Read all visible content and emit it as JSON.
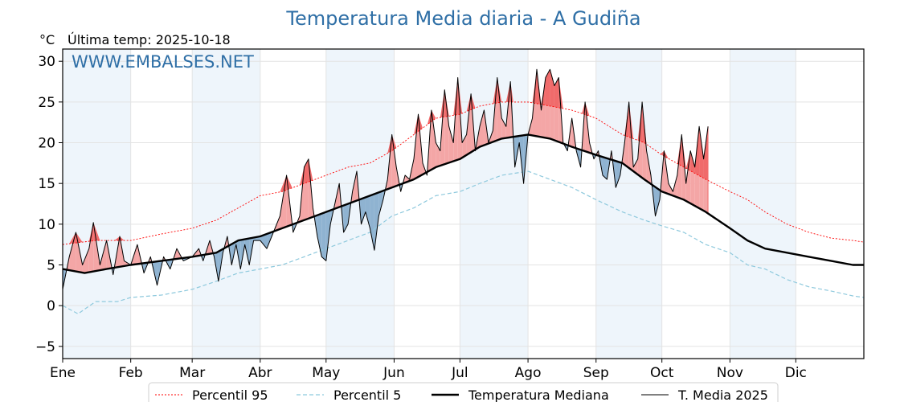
{
  "chart_data": {
    "type": "line",
    "title": "Temperatura Media diaria - A Gudiña",
    "unit_label": "°C",
    "last_temp_label": "Última temp: 2025-10-18",
    "watermark": "WWW.EMBALSES.NET",
    "ylim": [
      -6.5,
      31.5
    ],
    "y_ticks": [
      -5,
      0,
      5,
      10,
      15,
      20,
      25,
      30
    ],
    "x_range_days": [
      0,
      365
    ],
    "months": [
      {
        "label": "Ene",
        "day": 0
      },
      {
        "label": "Feb",
        "day": 31
      },
      {
        "label": "Mar",
        "day": 59
      },
      {
        "label": "Abr",
        "day": 90
      },
      {
        "label": "May",
        "day": 120
      },
      {
        "label": "Jun",
        "day": 151
      },
      {
        "label": "Jul",
        "day": 181
      },
      {
        "label": "Ago",
        "day": 212
      },
      {
        "label": "Sep",
        "day": 243
      },
      {
        "label": "Oct",
        "day": 273
      },
      {
        "label": "Nov",
        "day": 304
      },
      {
        "label": "Dic",
        "day": 334
      }
    ],
    "shaded_bands_days": [
      [
        0,
        31
      ],
      [
        59,
        90
      ],
      [
        120,
        151
      ],
      [
        181,
        212
      ],
      [
        243,
        273
      ],
      [
        304,
        334
      ]
    ],
    "grid": true,
    "legend_position": "bottom",
    "colors": {
      "p95": "#ff0000",
      "p5": "#8ec9dd",
      "median": "#000000",
      "current": "#000000",
      "above": "#f4a6a6",
      "above_extreme": "#f06b6b",
      "below": "#8fb3d1",
      "band": "#eef5fb",
      "title": "#2f6fa6"
    },
    "series": [
      {
        "name": "Percentil 95",
        "style": "dotted-red",
        "points": [
          [
            0,
            7.5
          ],
          [
            15,
            8
          ],
          [
            31,
            8
          ],
          [
            45,
            8.8
          ],
          [
            59,
            9.5
          ],
          [
            70,
            10.5
          ],
          [
            80,
            12
          ],
          [
            90,
            13.5
          ],
          [
            100,
            14
          ],
          [
            110,
            15
          ],
          [
            120,
            16
          ],
          [
            130,
            17
          ],
          [
            140,
            17.5
          ],
          [
            150,
            19
          ],
          [
            160,
            21
          ],
          [
            170,
            23
          ],
          [
            181,
            23.5
          ],
          [
            190,
            24.5
          ],
          [
            200,
            25
          ],
          [
            212,
            25
          ],
          [
            222,
            24.5
          ],
          [
            232,
            24
          ],
          [
            243,
            23
          ],
          [
            255,
            21
          ],
          [
            265,
            20
          ],
          [
            273,
            18.5
          ],
          [
            283,
            17
          ],
          [
            293,
            15.5
          ],
          [
            304,
            14
          ],
          [
            312,
            13
          ],
          [
            320,
            11.5
          ],
          [
            330,
            10
          ],
          [
            340,
            9
          ],
          [
            350,
            8.3
          ],
          [
            360,
            8
          ],
          [
            365,
            7.8
          ]
        ]
      },
      {
        "name": "Percentil 5",
        "style": "dashed-lightblue",
        "points": [
          [
            0,
            0
          ],
          [
            7,
            -1
          ],
          [
            15,
            0.5
          ],
          [
            25,
            0.5
          ],
          [
            31,
            1
          ],
          [
            45,
            1.3
          ],
          [
            59,
            2
          ],
          [
            70,
            3
          ],
          [
            80,
            4
          ],
          [
            90,
            4.5
          ],
          [
            100,
            5
          ],
          [
            110,
            6
          ],
          [
            120,
            7
          ],
          [
            130,
            8
          ],
          [
            140,
            9
          ],
          [
            150,
            11
          ],
          [
            160,
            12
          ],
          [
            170,
            13.5
          ],
          [
            181,
            14
          ],
          [
            190,
            15
          ],
          [
            200,
            16
          ],
          [
            212,
            16.5
          ],
          [
            222,
            15.5
          ],
          [
            232,
            14.5
          ],
          [
            243,
            13
          ],
          [
            255,
            11.5
          ],
          [
            265,
            10.5
          ],
          [
            273,
            9.8
          ],
          [
            283,
            9
          ],
          [
            293,
            7.5
          ],
          [
            304,
            6.5
          ],
          [
            312,
            5
          ],
          [
            320,
            4.5
          ],
          [
            330,
            3.2
          ],
          [
            340,
            2.3
          ],
          [
            350,
            1.8
          ],
          [
            360,
            1.2
          ],
          [
            365,
            1
          ]
        ]
      },
      {
        "name": "Temperatura Mediana",
        "style": "thick-black",
        "points": [
          [
            0,
            4.5
          ],
          [
            10,
            4
          ],
          [
            20,
            4.5
          ],
          [
            31,
            5
          ],
          [
            45,
            5.5
          ],
          [
            59,
            6
          ],
          [
            70,
            6.5
          ],
          [
            80,
            8
          ],
          [
            90,
            8.5
          ],
          [
            100,
            9.5
          ],
          [
            110,
            10.5
          ],
          [
            120,
            11.5
          ],
          [
            130,
            12.5
          ],
          [
            140,
            13.5
          ],
          [
            150,
            14.5
          ],
          [
            160,
            15.5
          ],
          [
            170,
            17
          ],
          [
            181,
            18
          ],
          [
            190,
            19.5
          ],
          [
            200,
            20.5
          ],
          [
            212,
            21
          ],
          [
            222,
            20.5
          ],
          [
            232,
            19.5
          ],
          [
            243,
            18.5
          ],
          [
            255,
            17.5
          ],
          [
            265,
            15.5
          ],
          [
            273,
            14
          ],
          [
            283,
            13
          ],
          [
            293,
            11.5
          ],
          [
            304,
            9.5
          ],
          [
            312,
            8
          ],
          [
            320,
            7
          ],
          [
            330,
            6.5
          ],
          [
            340,
            6
          ],
          [
            350,
            5.5
          ],
          [
            360,
            5
          ],
          [
            365,
            5
          ]
        ]
      },
      {
        "name": "T. Media 2025",
        "style": "thin-black",
        "points": [
          [
            0,
            2
          ],
          [
            3,
            6
          ],
          [
            6,
            9
          ],
          [
            9,
            5
          ],
          [
            12,
            7
          ],
          [
            14,
            10.2
          ],
          [
            17,
            5
          ],
          [
            20,
            8
          ],
          [
            23,
            3.8
          ],
          [
            26,
            8.5
          ],
          [
            28,
            5.5
          ],
          [
            31,
            5
          ],
          [
            34,
            7.5
          ],
          [
            37,
            4
          ],
          [
            40,
            6
          ],
          [
            43,
            2.5
          ],
          [
            46,
            6
          ],
          [
            49,
            4.5
          ],
          [
            52,
            7
          ],
          [
            55,
            5.5
          ],
          [
            59,
            6
          ],
          [
            62,
            7
          ],
          [
            64,
            5.5
          ],
          [
            67,
            8
          ],
          [
            69,
            6
          ],
          [
            71,
            3
          ],
          [
            73,
            6.5
          ],
          [
            75,
            8.5
          ],
          [
            77,
            5
          ],
          [
            79,
            7.5
          ],
          [
            81,
            4.5
          ],
          [
            83,
            7.5
          ],
          [
            85,
            5
          ],
          [
            87,
            8
          ],
          [
            90,
            8
          ],
          [
            93,
            7
          ],
          [
            96,
            9
          ],
          [
            99,
            11
          ],
          [
            102,
            16
          ],
          [
            105,
            9
          ],
          [
            108,
            11
          ],
          [
            110,
            17
          ],
          [
            112,
            18
          ],
          [
            114,
            12
          ],
          [
            116,
            8.5
          ],
          [
            118,
            6
          ],
          [
            120,
            5.5
          ],
          [
            122,
            10
          ],
          [
            124,
            12.5
          ],
          [
            126,
            15
          ],
          [
            128,
            9
          ],
          [
            130,
            10
          ],
          [
            132,
            14
          ],
          [
            134,
            16.5
          ],
          [
            136,
            10
          ],
          [
            138,
            11.5
          ],
          [
            140,
            9.5
          ],
          [
            142,
            6.8
          ],
          [
            144,
            11
          ],
          [
            146,
            13
          ],
          [
            148,
            15.5
          ],
          [
            150,
            21
          ],
          [
            152,
            17
          ],
          [
            154,
            14
          ],
          [
            156,
            16
          ],
          [
            158,
            15.5
          ],
          [
            160,
            18
          ],
          [
            162,
            23.5
          ],
          [
            164,
            17.5
          ],
          [
            166,
            16
          ],
          [
            168,
            24
          ],
          [
            170,
            20
          ],
          [
            172,
            19
          ],
          [
            174,
            26.5
          ],
          [
            176,
            22
          ],
          [
            178,
            20
          ],
          [
            180,
            28
          ],
          [
            182,
            20
          ],
          [
            184,
            21
          ],
          [
            186,
            26
          ],
          [
            188,
            19
          ],
          [
            190,
            22
          ],
          [
            192,
            24
          ],
          [
            194,
            20
          ],
          [
            196,
            21.5
          ],
          [
            198,
            28
          ],
          [
            200,
            23
          ],
          [
            202,
            22
          ],
          [
            204,
            27.5
          ],
          [
            206,
            17
          ],
          [
            208,
            20
          ],
          [
            210,
            15
          ],
          [
            212,
            21
          ],
          [
            214,
            23
          ],
          [
            216,
            29
          ],
          [
            218,
            24
          ],
          [
            220,
            28
          ],
          [
            222,
            29
          ],
          [
            224,
            27
          ],
          [
            226,
            28
          ],
          [
            228,
            20
          ],
          [
            230,
            19
          ],
          [
            232,
            23
          ],
          [
            234,
            19
          ],
          [
            236,
            17
          ],
          [
            238,
            25
          ],
          [
            240,
            20
          ],
          [
            242,
            18
          ],
          [
            244,
            19
          ],
          [
            246,
            16
          ],
          [
            248,
            15.5
          ],
          [
            250,
            19
          ],
          [
            252,
            14.5
          ],
          [
            254,
            16
          ],
          [
            256,
            20
          ],
          [
            258,
            25
          ],
          [
            260,
            17
          ],
          [
            262,
            18
          ],
          [
            264,
            25
          ],
          [
            266,
            19
          ],
          [
            268,
            16
          ],
          [
            270,
            11
          ],
          [
            272,
            13
          ],
          [
            274,
            19
          ],
          [
            276,
            15
          ],
          [
            278,
            14
          ],
          [
            280,
            16
          ],
          [
            282,
            21
          ],
          [
            284,
            15
          ],
          [
            286,
            19
          ],
          [
            288,
            17
          ],
          [
            290,
            22
          ],
          [
            292,
            18
          ],
          [
            294,
            22
          ]
        ]
      }
    ],
    "legend": [
      {
        "label": "Percentil 95",
        "style": "dotted-red"
      },
      {
        "label": "Percentil 5",
        "style": "dashed-lightblue"
      },
      {
        "label": "Temperatura Mediana",
        "style": "thick-black"
      },
      {
        "label": "T. Media 2025",
        "style": "thin-black"
      }
    ]
  }
}
